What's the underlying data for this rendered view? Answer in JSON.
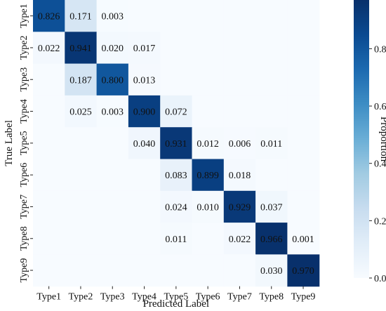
{
  "chart_data": {
    "type": "heatmap",
    "xlabel": "Predicted Label",
    "ylabel": "True Label",
    "x_categories": [
      "Type1",
      "Type2",
      "Type3",
      "Type4",
      "Type5",
      "Type6",
      "Type7",
      "Type8",
      "Type9"
    ],
    "y_categories": [
      "Type1",
      "Type2",
      "Type3",
      "Type4",
      "Type5",
      "Type6",
      "Type7",
      "Type8",
      "Type9"
    ],
    "values": [
      [
        0.826,
        0.171,
        0.003,
        null,
        null,
        null,
        null,
        null,
        null
      ],
      [
        0.022,
        0.941,
        0.02,
        0.017,
        null,
        null,
        null,
        null,
        null
      ],
      [
        null,
        0.187,
        0.8,
        0.013,
        null,
        null,
        null,
        null,
        null
      ],
      [
        null,
        0.025,
        0.003,
        0.9,
        0.072,
        null,
        null,
        null,
        null
      ],
      [
        null,
        null,
        null,
        0.04,
        0.931,
        0.012,
        0.006,
        0.011,
        null
      ],
      [
        null,
        null,
        null,
        null,
        0.083,
        0.899,
        0.018,
        null,
        null
      ],
      [
        null,
        null,
        null,
        null,
        0.024,
        0.01,
        0.929,
        0.037,
        null
      ],
      [
        null,
        null,
        null,
        null,
        0.011,
        null,
        0.022,
        0.966,
        0.001
      ],
      [
        null,
        null,
        null,
        null,
        null,
        null,
        null,
        0.03,
        0.97
      ]
    ],
    "value_labels": [
      [
        "0.826",
        "0.171",
        "0.003",
        "",
        "",
        "",
        "",
        "",
        ""
      ],
      [
        "0.022",
        "0.941",
        "0.020",
        "0.017",
        "",
        "",
        "",
        "",
        ""
      ],
      [
        "",
        "0.187",
        "0.800",
        "0.013",
        "",
        "",
        "",
        "",
        ""
      ],
      [
        "",
        "0.025",
        "0.003",
        "0.900",
        "0.072",
        "",
        "",
        "",
        ""
      ],
      [
        "",
        "",
        "",
        "0.040",
        "0.931",
        "0.012",
        "0.006",
        "0.011",
        ""
      ],
      [
        "",
        "",
        "",
        "",
        "0.083",
        "0.899",
        "0.018",
        "",
        ""
      ],
      [
        "",
        "",
        "",
        "",
        "0.024",
        "0.010",
        "0.929",
        "0.037",
        ""
      ],
      [
        "",
        "",
        "",
        "",
        "0.011",
        "",
        "0.022",
        "0.966",
        "0.001"
      ],
      [
        "",
        "",
        "",
        "",
        "",
        "",
        "",
        "0.030",
        "0.970"
      ]
    ],
    "colorbar": {
      "label": "Proportion",
      "ticks": [
        0.0,
        0.2,
        0.4,
        0.6,
        0.8
      ],
      "tick_labels": [
        "0.0",
        "0.2",
        "0.4",
        "0.6",
        "0.8"
      ],
      "range": [
        0,
        0.97
      ]
    },
    "colormap": [
      "#f7fbff",
      "#e1edf8",
      "#c7dcef",
      "#a1cbe2",
      "#6aaed6",
      "#3d8dc4",
      "#1c6ab0",
      "#0a4a91",
      "#08306b"
    ],
    "grid": false
  }
}
